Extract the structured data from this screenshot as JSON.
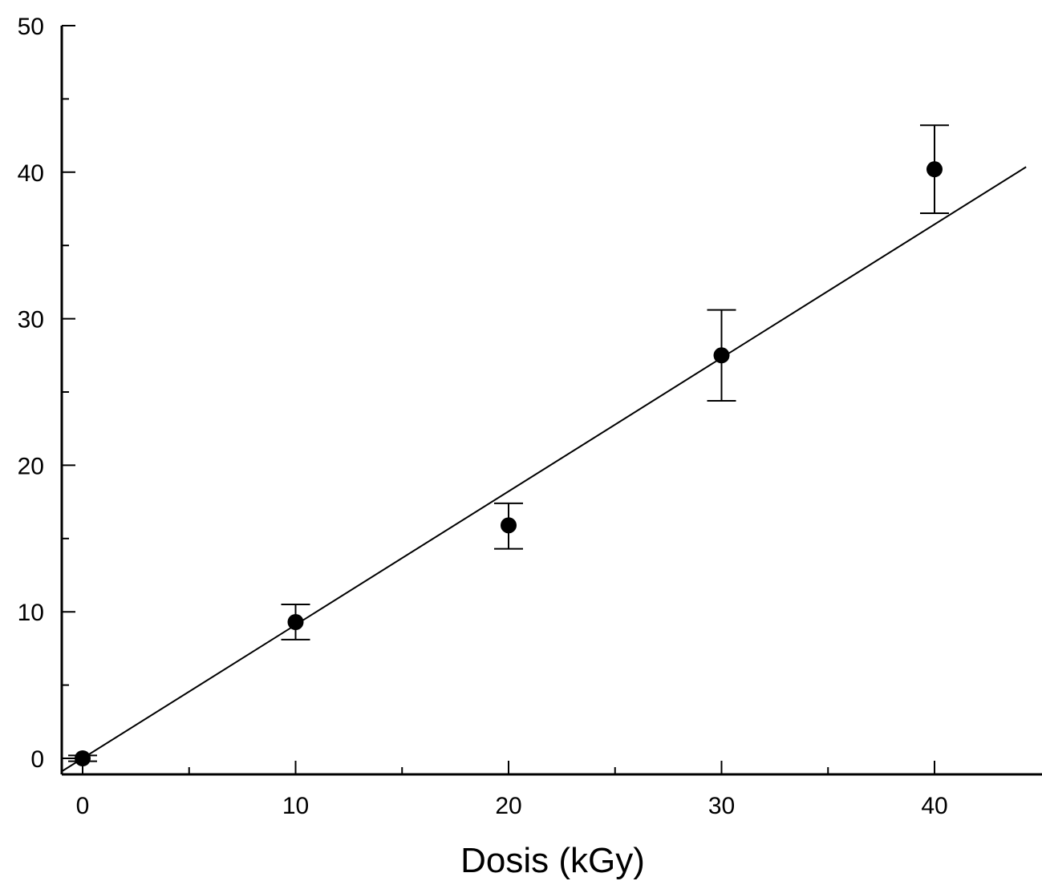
{
  "chart_data": {
    "type": "scatter",
    "title": "",
    "xlabel": "Dosis (kGy)",
    "ylabel": "",
    "xlim": [
      -1,
      45
    ],
    "ylim": [
      -1,
      50
    ],
    "xticks": [
      0,
      10,
      20,
      30,
      40
    ],
    "xminor_ticks": [
      5,
      15,
      25,
      35
    ],
    "yticks": [
      0,
      10,
      20,
      30,
      40,
      50
    ],
    "yminor_ticks": [
      5,
      15,
      25,
      35,
      45
    ],
    "grid": false,
    "legend": "none",
    "series": [
      {
        "points": [
          {
            "x": 0,
            "y": 0.0,
            "err_low": 0.2,
            "err_high": 0.2
          },
          {
            "x": 10,
            "y": 9.3,
            "err_low": 1.2,
            "err_high": 1.2
          },
          {
            "x": 20,
            "y": 15.9,
            "err_low": 1.6,
            "err_high": 1.5
          },
          {
            "x": 30,
            "y": 27.5,
            "err_low": 3.1,
            "err_high": 3.1
          },
          {
            "x": 40,
            "y": 40.2,
            "err_low": 3.0,
            "err_high": 3.0
          }
        ]
      }
    ],
    "fit_line": {
      "type": "linear",
      "slope": 0.911,
      "intercept": 0.0,
      "x_start": -1,
      "x_end": 44.3
    },
    "colors": {
      "marker": "#000000",
      "line": "#000000",
      "axis": "#000000",
      "background": "#ffffff"
    }
  }
}
